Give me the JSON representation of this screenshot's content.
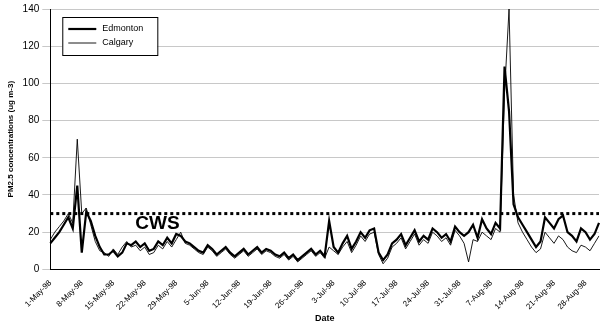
{
  "chart_data": {
    "type": "line",
    "x_label": "Date",
    "y_label": "PM2.5 concentrations (ug m-3)",
    "categories": [
      "1-May-98",
      null,
      null,
      null,
      null,
      null,
      null,
      "8-May-98",
      null,
      null,
      null,
      null,
      null,
      null,
      "15-May-98",
      null,
      null,
      null,
      null,
      null,
      null,
      "22-May-98",
      null,
      null,
      null,
      null,
      null,
      null,
      "29-May-98",
      null,
      null,
      null,
      null,
      null,
      null,
      "5-Jun-98",
      null,
      null,
      null,
      null,
      null,
      null,
      "12-Jun-98",
      null,
      null,
      null,
      null,
      null,
      null,
      "19-Jun-98",
      null,
      null,
      null,
      null,
      null,
      null,
      "26-Jun-98",
      null,
      null,
      null,
      null,
      null,
      null,
      "3-Jul-98",
      null,
      null,
      null,
      null,
      null,
      null,
      "10-Jul-98",
      null,
      null,
      null,
      null,
      null,
      null,
      "17-Jul-98",
      null,
      null,
      null,
      null,
      null,
      null,
      "24-Jul-98",
      null,
      null,
      null,
      null,
      null,
      null,
      "31-Jul-98",
      null,
      null,
      null,
      null,
      null,
      null,
      "7-Aug-98",
      null,
      null,
      null,
      null,
      null,
      null,
      "14-Aug-98",
      null,
      null,
      null,
      null,
      null,
      null,
      "21-Aug-98",
      null,
      null,
      null,
      null,
      null,
      null,
      "28-Aug-98",
      null,
      null,
      null
    ],
    "series": [
      {
        "name": "Edmonton",
        "color": "#000000",
        "line_style": "solid",
        "values": [
          14,
          17,
          20,
          24,
          28,
          22,
          45,
          9,
          31,
          26,
          18,
          12,
          8,
          8,
          10,
          7,
          9,
          14,
          13,
          15,
          12,
          14,
          10,
          11,
          15,
          13,
          17,
          14,
          19,
          18,
          15,
          14,
          12,
          10,
          9,
          13,
          11,
          8,
          10,
          12,
          9,
          7,
          9,
          11,
          8,
          10,
          12,
          9,
          11,
          10,
          8,
          7,
          9,
          6,
          8,
          5,
          7,
          9,
          11,
          8,
          10,
          7,
          26,
          12,
          9,
          14,
          18,
          11,
          15,
          20,
          17,
          21,
          22,
          9,
          5,
          8,
          14,
          16,
          19,
          13,
          17,
          21,
          15,
          18,
          16,
          22,
          20,
          17,
          19,
          15,
          23,
          20,
          18,
          20,
          24,
          17,
          27,
          22,
          19,
          25,
          22,
          109,
          85,
          35,
          28,
          24,
          20,
          16,
          12,
          15,
          28,
          25,
          22,
          27,
          29,
          20,
          18,
          15,
          22,
          20,
          16,
          19,
          25
        ]
      },
      {
        "name": "Calgary",
        "color": "#000000",
        "line_style": "solid",
        "values": [
          16,
          20,
          23,
          26,
          30,
          25,
          70,
          30,
          33,
          24,
          15,
          10,
          9,
          7,
          11,
          8,
          12,
          15,
          12,
          13,
          10,
          12,
          8,
          9,
          13,
          11,
          15,
          12,
          16,
          20,
          14,
          13,
          11,
          9,
          8,
          12,
          10,
          7,
          9,
          11,
          8,
          6,
          8,
          10,
          7,
          9,
          11,
          8,
          10,
          9,
          7,
          6,
          8,
          5,
          7,
          4,
          6,
          8,
          10,
          7,
          9,
          6,
          12,
          10,
          8,
          12,
          15,
          9,
          13,
          18,
          15,
          19,
          20,
          8,
          3,
          6,
          12,
          14,
          17,
          11,
          15,
          19,
          13,
          16,
          14,
          20,
          18,
          15,
          17,
          13,
          21,
          18,
          14,
          4,
          16,
          15,
          20,
          18,
          16,
          22,
          20,
          95,
          140,
          40,
          25,
          20,
          16,
          12,
          9,
          11,
          20,
          17,
          14,
          18,
          16,
          12,
          10,
          9,
          13,
          12,
          10,
          14,
          18
        ]
      }
    ],
    "ylim": [
      0,
      140
    ],
    "yticks": [
      0,
      20,
      40,
      60,
      80,
      100,
      120,
      140
    ],
    "grid": true,
    "legend": "upper left",
    "annotations": [
      {
        "text": "CWS",
        "y": 30
      }
    ]
  }
}
